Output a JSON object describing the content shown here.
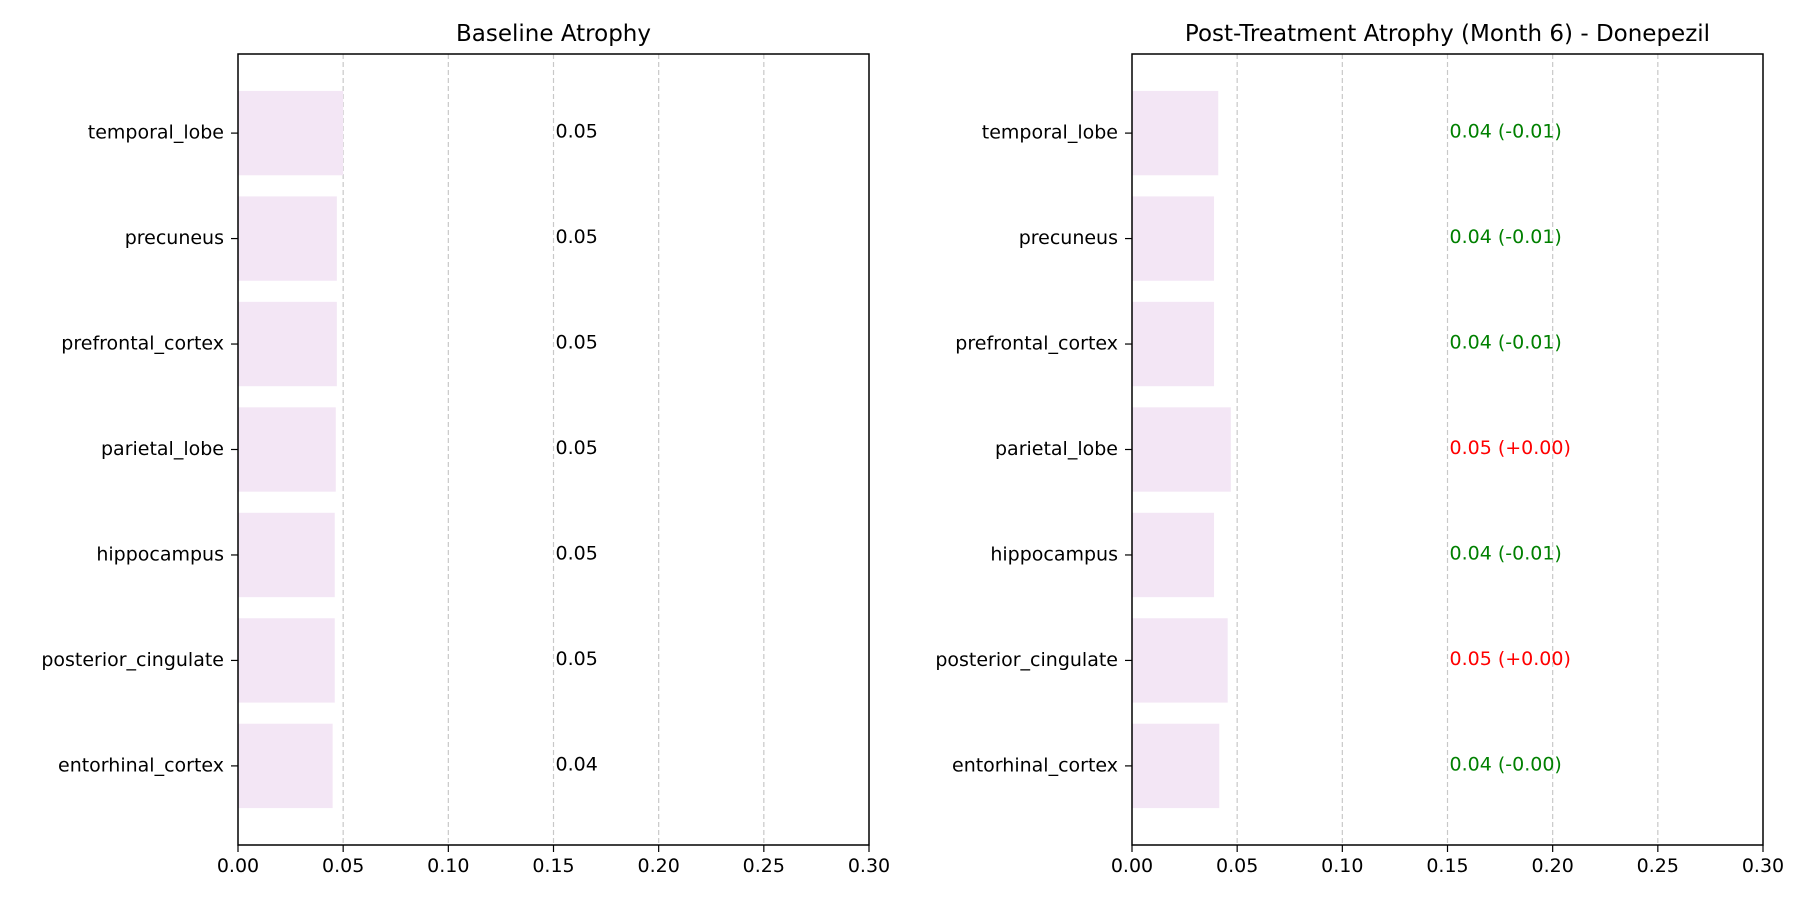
{
  "chart_data": [
    {
      "type": "bar",
      "orientation": "horizontal",
      "title": "Baseline Atrophy",
      "xlabel": "",
      "ylabel": "",
      "xlim": [
        0,
        0.3
      ],
      "xticks": [
        "0.00",
        "0.05",
        "0.10",
        "0.15",
        "0.20",
        "0.25",
        "0.30"
      ],
      "grid": "x-dashed",
      "bar_color": "#f3e6f5",
      "categories": [
        "temporal_lobe",
        "precuneus",
        "prefrontal_cortex",
        "parietal_lobe",
        "hippocampus",
        "posterior_cingulate",
        "entorhinal_cortex"
      ],
      "values": [
        0.05,
        0.047,
        0.047,
        0.0465,
        0.046,
        0.046,
        0.045
      ],
      "labels": [
        "0.05",
        "0.05",
        "0.05",
        "0.05",
        "0.05",
        "0.05",
        "0.04"
      ],
      "label_colors": [
        "#000000",
        "#000000",
        "#000000",
        "#000000",
        "#000000",
        "#000000",
        "#000000"
      ]
    },
    {
      "type": "bar",
      "orientation": "horizontal",
      "title": "Post-Treatment Atrophy (Month 6) - Donepezil",
      "xlabel": "",
      "ylabel": "",
      "xlim": [
        0,
        0.3
      ],
      "xticks": [
        "0.00",
        "0.05",
        "0.10",
        "0.15",
        "0.20",
        "0.25",
        "0.30"
      ],
      "grid": "x-dashed",
      "bar_color": "#f3e6f5",
      "categories": [
        "temporal_lobe",
        "precuneus",
        "prefrontal_cortex",
        "parietal_lobe",
        "hippocampus",
        "posterior_cingulate",
        "entorhinal_cortex"
      ],
      "values": [
        0.041,
        0.039,
        0.039,
        0.047,
        0.039,
        0.0455,
        0.0415
      ],
      "labels": [
        "0.04 (-0.01)",
        "0.04 (-0.01)",
        "0.04 (-0.01)",
        "0.05 (+0.00)",
        "0.04 (-0.01)",
        "0.05 (+0.00)",
        "0.04 (-0.00)"
      ],
      "label_colors": [
        "#008000",
        "#008000",
        "#008000",
        "#ff0000",
        "#008000",
        "#ff0000",
        "#008000"
      ]
    }
  ]
}
